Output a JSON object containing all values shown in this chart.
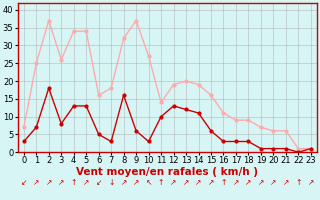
{
  "x": [
    0,
    1,
    2,
    3,
    4,
    5,
    6,
    7,
    8,
    9,
    10,
    11,
    12,
    13,
    14,
    15,
    16,
    17,
    18,
    19,
    20,
    21,
    22,
    23
  ],
  "wind_avg": [
    3,
    7,
    18,
    8,
    13,
    13,
    5,
    3,
    16,
    6,
    3,
    10,
    13,
    12,
    11,
    6,
    3,
    3,
    3,
    1,
    1,
    1,
    0,
    1
  ],
  "wind_gust": [
    7,
    25,
    37,
    26,
    34,
    34,
    16,
    18,
    32,
    37,
    27,
    14,
    19,
    20,
    19,
    16,
    11,
    9,
    9,
    7,
    6,
    6,
    1,
    1
  ],
  "color_avg": "#cc0000",
  "color_gust": "#ffaaaa",
  "bg_color": "#d8f5f5",
  "grid_color": "#aaaaaa",
  "xlabel": "Vent moyen/en rafales ( km/h )",
  "xlabel_color": "#cc0000",
  "ylabel_ticks": [
    0,
    5,
    10,
    15,
    20,
    25,
    30,
    35,
    40
  ],
  "ylim": [
    0,
    42
  ],
  "xlim": [
    -0.5,
    23.5
  ],
  "tick_fontsize": 6,
  "xlabel_fontsize": 7.5,
  "arrows": [
    "↙",
    "↗",
    "↗",
    "↗",
    "↑",
    "↗",
    "↙",
    "↓",
    "↗",
    "↗",
    "↖",
    "↑",
    "↗",
    "↗",
    "↗",
    "↗",
    "↑",
    "↗",
    "↗",
    "↗",
    "↗",
    "↗",
    "↑",
    "↗"
  ]
}
